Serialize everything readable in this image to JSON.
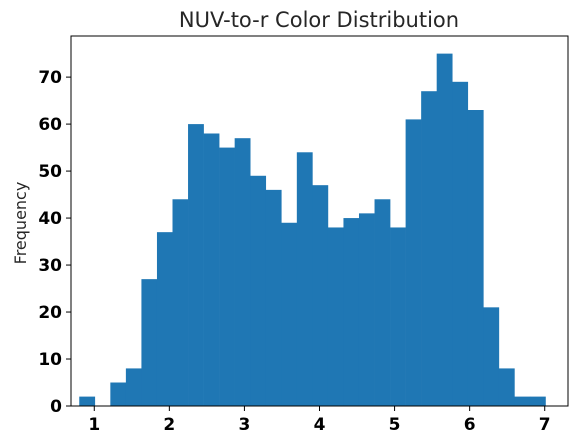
{
  "chart_data": {
    "type": "bar",
    "title": "NUV-to-r Color Distribution",
    "xlabel": "",
    "ylabel": "Frequency",
    "xlim": [
      0.69,
      7.31
    ],
    "ylim": [
      0,
      78.75
    ],
    "x_ticks": [
      1,
      2,
      3,
      4,
      5,
      6,
      7
    ],
    "y_ticks": [
      0,
      10,
      20,
      30,
      40,
      50,
      60,
      70
    ],
    "color": "#1f77b4",
    "bins": {
      "start": 0.8,
      "width": 0.207,
      "counts": [
        2,
        0,
        5,
        8,
        27,
        37,
        44,
        60,
        58,
        55,
        57,
        49,
        46,
        39,
        54,
        47,
        38,
        40,
        41,
        44,
        38,
        61,
        67,
        75,
        69,
        63,
        21,
        8,
        2,
        2
      ]
    },
    "grid": false,
    "legend": "none"
  }
}
